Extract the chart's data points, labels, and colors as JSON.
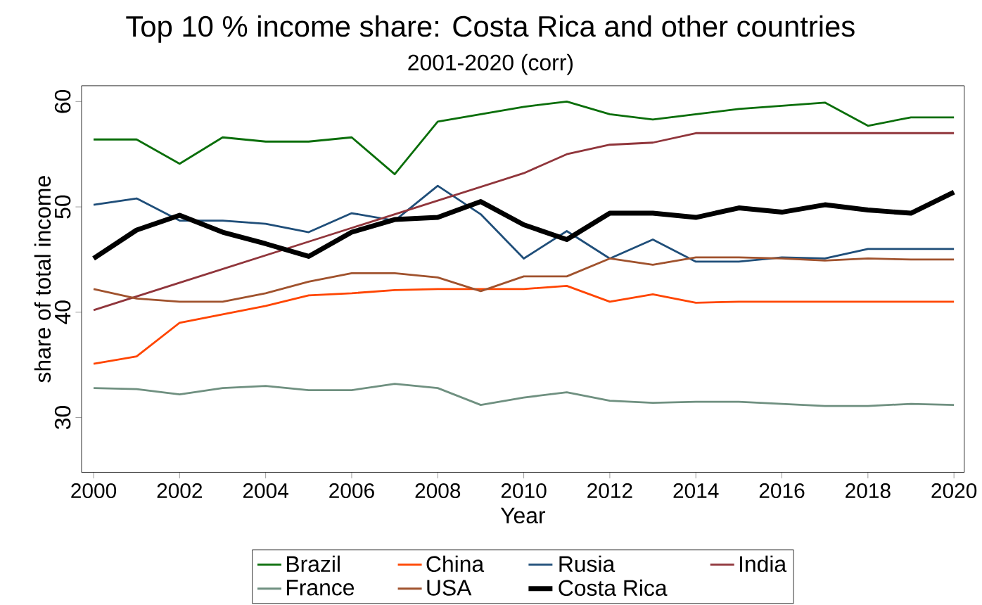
{
  "chart_data": {
    "type": "line",
    "title": "Top 10 % income share: Costa Rica and other countries",
    "subtitle": "2001-2020 (corr)",
    "xlabel": "Year",
    "ylabel": "share of total income",
    "x": [
      2000,
      2001,
      2002,
      2003,
      2004,
      2005,
      2006,
      2007,
      2008,
      2009,
      2010,
      2011,
      2012,
      2013,
      2014,
      2015,
      2016,
      2017,
      2018,
      2019,
      2020
    ],
    "xlim": [
      1999.72,
      2020.24
    ],
    "ylim": [
      24.8,
      61.5
    ],
    "xticks": [
      2000,
      2002,
      2004,
      2006,
      2008,
      2010,
      2012,
      2014,
      2016,
      2018,
      2020
    ],
    "yticks": [
      30,
      40,
      50,
      60
    ],
    "grid": false,
    "legend": "bottom",
    "marker": "none",
    "line_style": "solid",
    "series": [
      {
        "name": "Brazil",
        "color": "#0a6e0a",
        "values": [
          56.4,
          56.4,
          54.1,
          56.6,
          56.2,
          56.2,
          56.6,
          53.1,
          58.1,
          58.8,
          59.5,
          60.0,
          58.8,
          58.3,
          58.8,
          59.3,
          59.6,
          59.9,
          57.7,
          58.5,
          58.5
        ]
      },
      {
        "name": "China",
        "color": "#ff4500",
        "values": [
          35.1,
          35.8,
          39.0,
          39.8,
          40.6,
          41.6,
          41.8,
          42.1,
          42.2,
          42.2,
          42.2,
          42.5,
          41.0,
          41.7,
          40.9,
          41.0,
          41.0,
          41.0,
          41.0,
          41.0,
          41.0
        ]
      },
      {
        "name": "Rusia",
        "color": "#1f4e79",
        "values": [
          50.2,
          50.8,
          48.7,
          48.7,
          48.4,
          47.6,
          49.4,
          48.7,
          52.0,
          49.3,
          45.1,
          47.7,
          45.1,
          46.9,
          44.8,
          44.8,
          45.2,
          45.1,
          46.0,
          46.0,
          46.0
        ]
      },
      {
        "name": "India",
        "color": "#90353b",
        "values": [
          40.2,
          41.5,
          42.8,
          44.1,
          45.4,
          46.7,
          48.0,
          49.3,
          50.6,
          51.9,
          53.2,
          55.0,
          55.9,
          56.1,
          57.0,
          57.0,
          57.0,
          57.0,
          57.0,
          57.0,
          57.0
        ]
      },
      {
        "name": "France",
        "color": "#6f9080",
        "values": [
          32.8,
          32.7,
          32.2,
          32.8,
          33.0,
          32.6,
          32.6,
          33.2,
          32.8,
          31.2,
          31.9,
          32.4,
          31.6,
          31.4,
          31.5,
          31.5,
          31.3,
          31.1,
          31.1,
          31.3,
          31.2
        ]
      },
      {
        "name": "USA",
        "color": "#a0522d",
        "values": [
          42.2,
          41.3,
          41.0,
          41.0,
          41.8,
          42.9,
          43.7,
          43.7,
          43.3,
          42.0,
          43.4,
          43.4,
          45.1,
          44.5,
          45.2,
          45.2,
          45.1,
          44.9,
          45.1,
          45.0,
          45.0
        ]
      },
      {
        "name": "Costa Rica",
        "color": "#000000",
        "values": [
          45.1,
          47.8,
          49.2,
          47.6,
          46.5,
          45.3,
          47.6,
          48.8,
          49.0,
          50.5,
          48.3,
          46.9,
          49.4,
          49.4,
          49.0,
          49.9,
          49.5,
          50.2,
          49.7,
          49.4,
          51.4
        ]
      }
    ]
  }
}
